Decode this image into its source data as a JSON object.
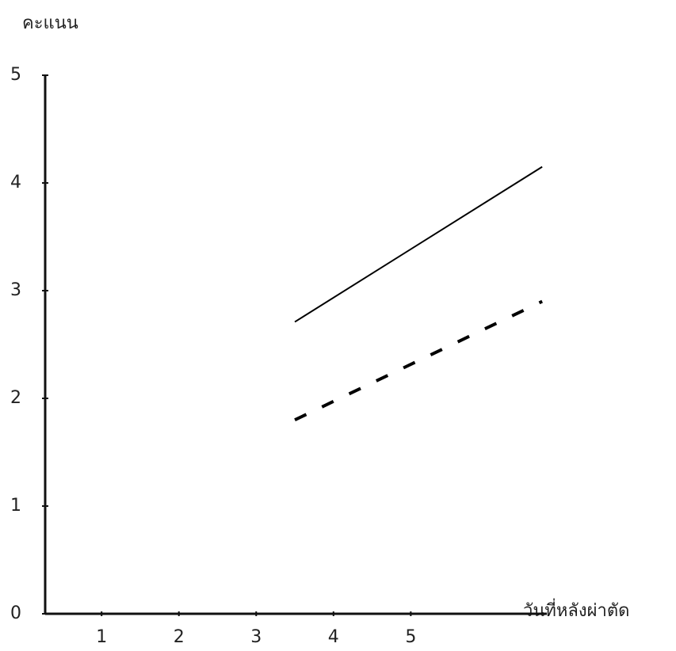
{
  "chart_data": {
    "type": "line",
    "y_label": "คะแนน",
    "x_label": "วันที่หลังผ่าตัด",
    "xlim": [
      0.27,
      6.76
    ],
    "xticks": [
      1,
      2,
      3,
      4,
      5
    ],
    "ylim": [
      0,
      5
    ],
    "yticks": [
      0,
      1,
      2,
      3,
      4,
      5
    ],
    "grid": false,
    "series": [
      {
        "color": "#000000",
        "dash": "solid",
        "x": [
          3.5,
          6.7
        ],
        "values": [
          2.71,
          4.15
        ]
      },
      {
        "color": "#000000",
        "dash": "dashed",
        "x": [
          3.5,
          6.7
        ],
        "values": [
          1.8,
          2.9
        ]
      }
    ]
  }
}
